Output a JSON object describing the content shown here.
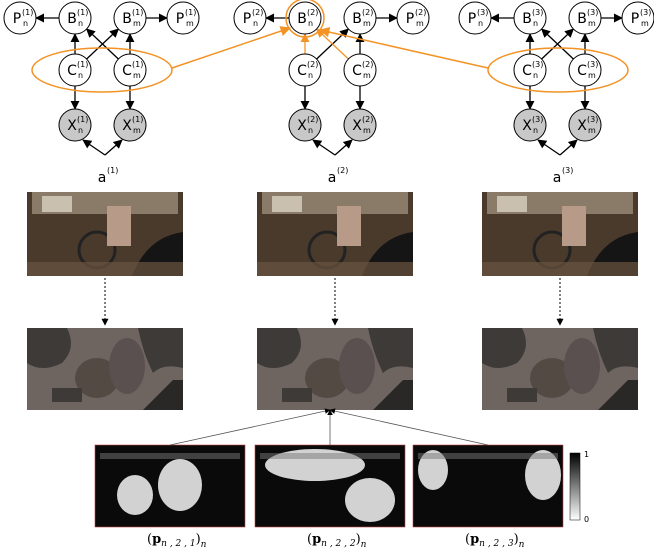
{
  "graphs": [
    {
      "nodes": {
        "pn": {
          "base": "P",
          "sub": "n",
          "sup": "(1)"
        },
        "bn": {
          "base": "B",
          "sub": "n",
          "sup": "(1)"
        },
        "bm": {
          "base": "B",
          "sub": "m",
          "sup": "(1)"
        },
        "pm": {
          "base": "P",
          "sub": "m",
          "sup": "(1)"
        },
        "cn": {
          "base": "C",
          "sub": "n",
          "sup": "(1)"
        },
        "cm": {
          "base": "C",
          "sub": "m",
          "sup": "(1)"
        },
        "xn": {
          "base": "X",
          "sub": "n",
          "sup": "(1)"
        },
        "xm": {
          "base": "X",
          "sub": "m",
          "sup": "(1)"
        }
      },
      "a": {
        "base": "a",
        "sup": "(1)"
      }
    },
    {
      "nodes": {
        "pn": {
          "base": "P",
          "sub": "n",
          "sup": "(2)"
        },
        "bn": {
          "base": "B",
          "sub": "n",
          "sup": "(2)"
        },
        "bm": {
          "base": "B",
          "sub": "m",
          "sup": "(2)"
        },
        "pm": {
          "base": "P",
          "sub": "m",
          "sup": "(2)"
        },
        "cn": {
          "base": "C",
          "sub": "n",
          "sup": "(2)"
        },
        "cm": {
          "base": "C",
          "sub": "m",
          "sup": "(2)"
        },
        "xn": {
          "base": "X",
          "sub": "n",
          "sup": "(2)"
        },
        "xm": {
          "base": "X",
          "sub": "m",
          "sup": "(2)"
        }
      },
      "a": {
        "base": "a",
        "sup": "(2)"
      }
    },
    {
      "nodes": {
        "pn": {
          "base": "P",
          "sub": "n",
          "sup": "(3)"
        },
        "bn": {
          "base": "B",
          "sub": "n",
          "sup": "(3)"
        },
        "bm": {
          "base": "B",
          "sub": "m",
          "sup": "(3)"
        },
        "pm": {
          "base": "P",
          "sub": "m",
          "sup": "(3)"
        },
        "cn": {
          "base": "C",
          "sub": "n",
          "sup": "(3)"
        },
        "cm": {
          "base": "C",
          "sub": "m",
          "sup": "(3)"
        },
        "xn": {
          "base": "X",
          "sub": "n",
          "sup": "(3)"
        },
        "xm": {
          "base": "X",
          "sub": "m",
          "sup": "(3)"
        }
      },
      "a": {
        "base": "a",
        "sup": "(3)"
      }
    }
  ],
  "colorbar": {
    "max": "1",
    "min": "0"
  },
  "captions": [
    {
      "open": "(",
      "base": "p",
      "sub": "n , 2 , 1",
      "close": ")",
      "outer": "n"
    },
    {
      "open": "(",
      "base": "p",
      "sub": "n , 2 , 2",
      "close": ")",
      "outer": "n"
    },
    {
      "open": "(",
      "base": "p",
      "sub": "n , 2 , 3",
      "close": ")",
      "outer": "n"
    }
  ]
}
